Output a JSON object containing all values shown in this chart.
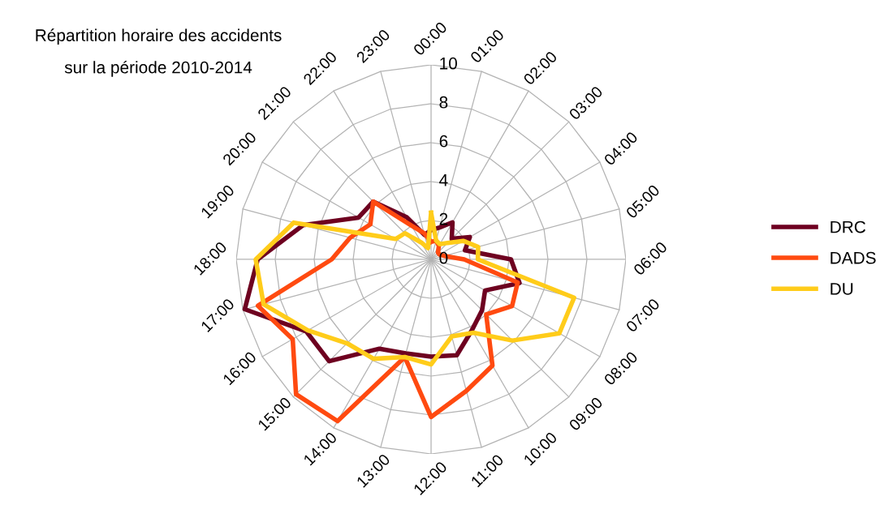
{
  "chart_data": {
    "type": "radar",
    "title": "Répartition horaire des accidents\nsur la période 2010-2014",
    "categories": [
      "00:00",
      "01:00",
      "02:00",
      "03:00",
      "04:00",
      "05:00",
      "06:00",
      "07:00",
      "08:00",
      "09:00",
      "10:00",
      "11:00",
      "12:00",
      "13:00",
      "14:00",
      "15:00",
      "16:00",
      "17:00",
      "18:00",
      "19:00",
      "20:00",
      "21:00",
      "22:00",
      "23:00"
    ],
    "series": [
      {
        "name": "DRC",
        "color": "#6e0020",
        "values": [
          1.5,
          1.7,
          2.2,
          1.5,
          2.3,
          1.8,
          4.1,
          4.7,
          3.2,
          3.7,
          4.2,
          5.1,
          5.0,
          5.0,
          5.3,
          7.4,
          7.4,
          9.9,
          8.9,
          6.8,
          4.3,
          4.2,
          2.5,
          1.3
        ]
      },
      {
        "name": "DADS",
        "color": "#ff4a10",
        "values": [
          0.9,
          1.0,
          0.8,
          0.5,
          0.5,
          0.7,
          1.7,
          4.6,
          4.8,
          4.0,
          6.3,
          7.0,
          8.1,
          5.2,
          9.6,
          9.8,
          8.2,
          9.2,
          5.1,
          4.3,
          3.6,
          4.2,
          2.0,
          1.4
        ]
      },
      {
        "name": "DU",
        "color": "#ffcc1a",
        "values": [
          2.4,
          1.0,
          0.9,
          1.2,
          1.9,
          2.5,
          2.4,
          7.6,
          7.6,
          5.9,
          4.35,
          4.1,
          5.4,
          5.2,
          5.9,
          6.1,
          7.3,
          8.9,
          9.0,
          7.3,
          2.1,
          1.9,
          1.0,
          0.6
        ]
      }
    ],
    "ylim": [
      0,
      10
    ],
    "yticks": [
      0,
      2,
      4,
      6,
      8,
      10
    ],
    "grid": true,
    "legend": "right"
  }
}
